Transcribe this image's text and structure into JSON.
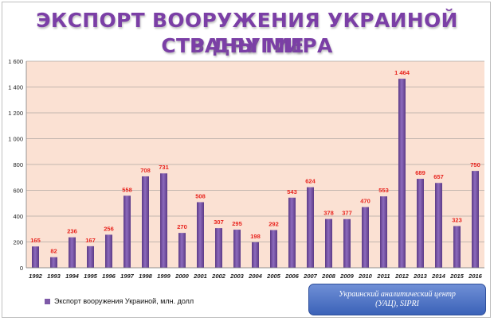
{
  "title_line1": "ЭКСПОРТ ВООРУЖЕНИЯ УКРАИНОЙ В ДРУГИЕ",
  "title_line2": "СТРАНЫ МИРА",
  "legend_label": "Экспорт вооружения Украиной, млн. долл",
  "source_line1": "Украинский аналитический центр",
  "source_line2": "(УАЦ), SIPRI",
  "colors": {
    "bar": "#7e5aa8",
    "plot_bg": "#fbe1d3",
    "label": "#e8241e",
    "title": "#7b3fa6"
  },
  "chart_data": {
    "type": "bar",
    "categories": [
      "1992",
      "1993",
      "1994",
      "1995",
      "1996",
      "1997",
      "1998",
      "1999",
      "2000",
      "2001",
      "2002",
      "2003",
      "2004",
      "2005",
      "2006",
      "2007",
      "2008",
      "2009",
      "2010",
      "2011",
      "2012",
      "2013",
      "2014",
      "2015",
      "2016"
    ],
    "values": [
      165,
      82,
      236,
      167,
      256,
      558,
      708,
      731,
      270,
      508,
      307,
      295,
      198,
      292,
      543,
      624,
      378,
      377,
      470,
      553,
      1464,
      689,
      657,
      323,
      750
    ],
    "value_labels": [
      "165",
      "82",
      "236",
      "167",
      "256",
      "558",
      "708",
      "731",
      "270",
      "508",
      "307",
      "295",
      "198",
      "292",
      "543",
      "624",
      "378",
      "377",
      "470",
      "553",
      "1 464",
      "689",
      "657",
      "323",
      "750"
    ],
    "yticks": [
      "0",
      "200",
      "400",
      "600",
      "800",
      "1 000",
      "1 200",
      "1 400",
      "1 600"
    ],
    "ylim": [
      0,
      1600
    ],
    "grid": true,
    "legend": "bottom-left"
  }
}
